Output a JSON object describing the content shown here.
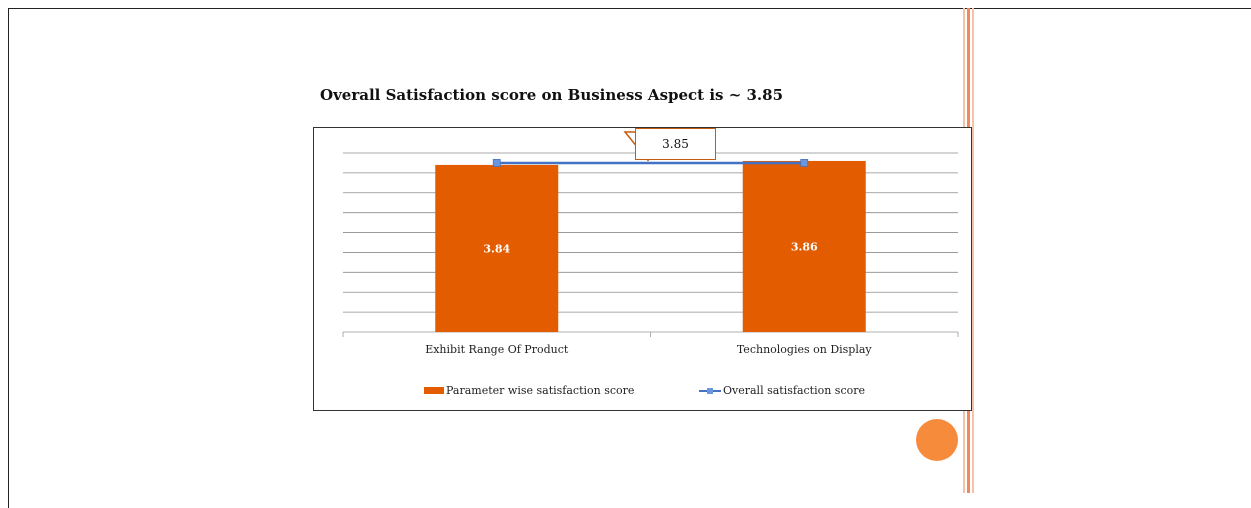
{
  "colors": {
    "bar": "#e35d00",
    "line": "#4472c4",
    "marker": "#6a96dc",
    "callout_border": "#c55a11",
    "dot": "#f68b3c",
    "stripe_light": "#f4c2a8",
    "stripe_dark": "#f08a5d"
  },
  "chart_data": {
    "type": "bar",
    "title": "Overall Satisfaction score on Business Aspect is  ~ 3.85",
    "categories": [
      "Exhibit Range Of Product",
      "Technologies on Display"
    ],
    "series": [
      {
        "name": "Parameter wise satisfaction score",
        "type": "bar",
        "values": [
          3.84,
          3.86
        ],
        "data_labels": [
          "3.84",
          "3.86"
        ]
      },
      {
        "name": "Overall satisfaction score",
        "type": "line",
        "values": [
          3.85,
          3.85
        ]
      }
    ],
    "ylim": [
      3.0,
      3.9
    ],
    "grid": true,
    "legend_position": "bottom",
    "annotation": "3.85"
  }
}
